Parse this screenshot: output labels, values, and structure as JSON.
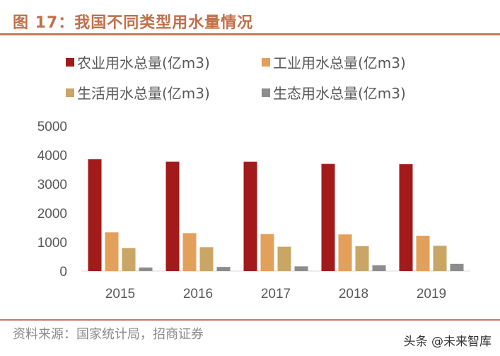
{
  "header": {
    "title": "图 17：我国不同类型用水量情况"
  },
  "footer": {
    "source": "资料来源：国家统计局，招商证券",
    "watermark": "头条 @未来智库"
  },
  "chart_data": {
    "type": "bar",
    "categories": [
      "2015",
      "2016",
      "2017",
      "2018",
      "2019"
    ],
    "series": [
      {
        "name": "农业用水总量(亿m3)",
        "color": "#a31a1a",
        "values": [
          3852,
          3768,
          3766,
          3693,
          3682
        ]
      },
      {
        "name": "工业用水总量(亿m3)",
        "color": "#e3a05a",
        "values": [
          1335,
          1308,
          1277,
          1262,
          1218
        ]
      },
      {
        "name": "生活用水总量(亿m3)",
        "color": "#c9a566",
        "values": [
          794,
          822,
          838,
          860,
          872
        ]
      },
      {
        "name": "生态用水总量(亿m3)",
        "color": "#8c8c8c",
        "values": [
          123,
          143,
          162,
          201,
          249
        ]
      }
    ],
    "ylim": [
      0,
      5000
    ],
    "yticks": [
      "0",
      "1000",
      "2000",
      "3000",
      "4000",
      "5000"
    ],
    "yticks_values": [
      0,
      1000,
      2000,
      3000,
      4000,
      5000
    ],
    "grid": false,
    "legend": "top"
  }
}
